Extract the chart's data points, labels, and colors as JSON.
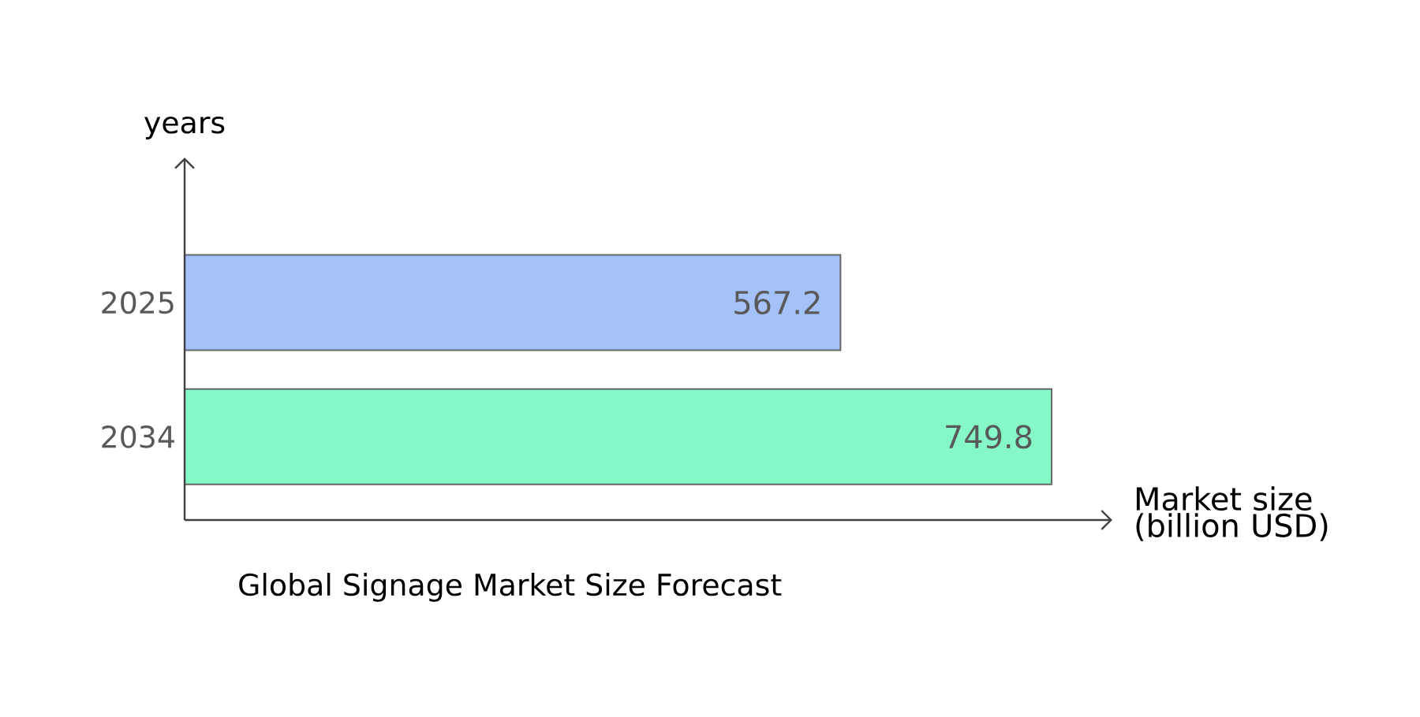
{
  "chart_data": {
    "type": "bar",
    "orientation": "horizontal",
    "title": "Global Signage Market Size Forecast",
    "xlabel": "Market size (billion USD)",
    "ylabel": "years",
    "categories": [
      "2025",
      "2034"
    ],
    "values": [
      567.2,
      749.8
    ],
    "colors": [
      "#a4c2f7",
      "#86f7c6"
    ],
    "data_labels": true
  }
}
